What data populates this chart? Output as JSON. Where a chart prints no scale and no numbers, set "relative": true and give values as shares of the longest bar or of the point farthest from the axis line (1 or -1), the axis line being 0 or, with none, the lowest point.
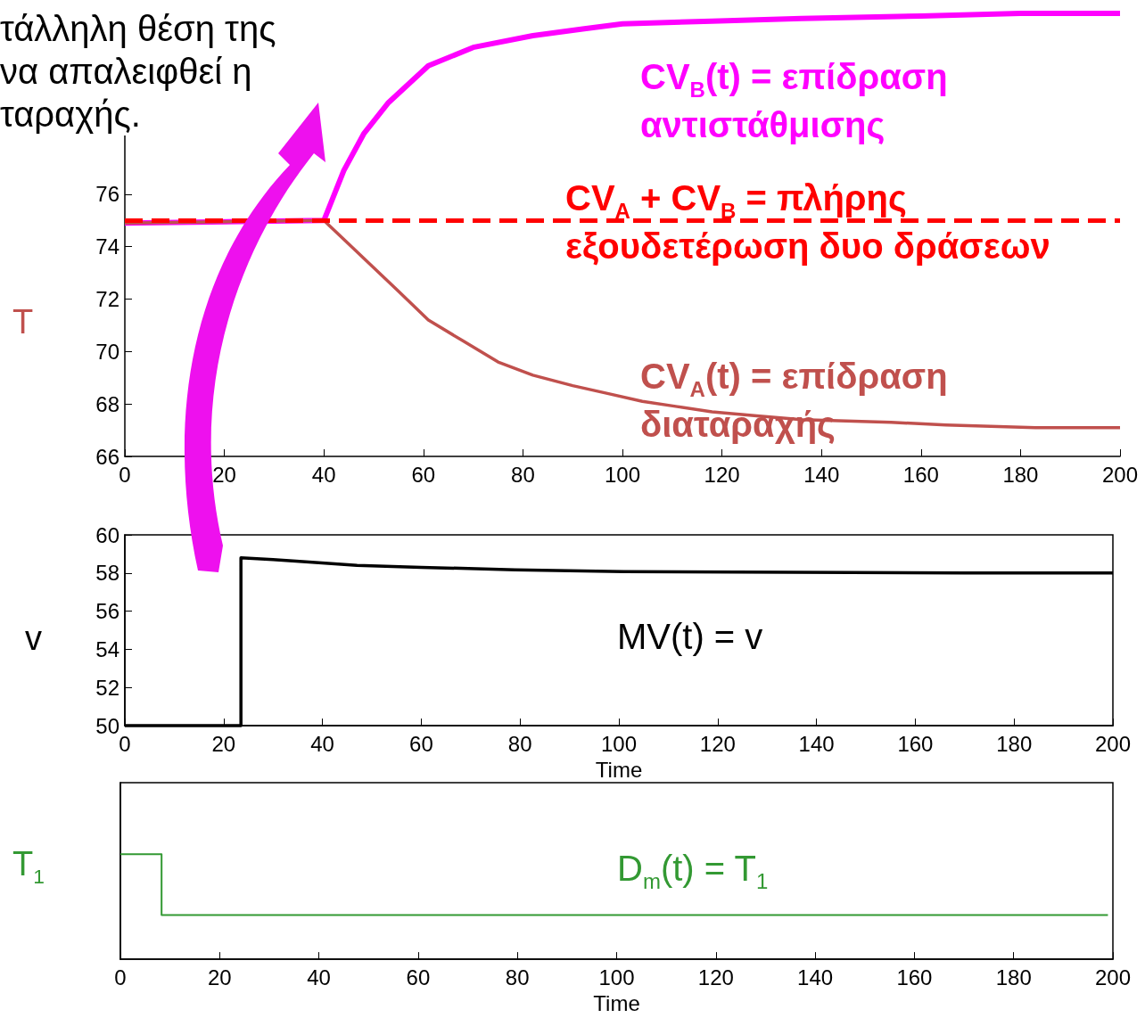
{
  "chart_data": [
    {
      "type": "line",
      "ylabel": "T",
      "xlim": [
        0,
        200
      ],
      "xticks": [
        0,
        20,
        40,
        60,
        80,
        100,
        120,
        140,
        160,
        180,
        200
      ],
      "ylim": [
        66,
        83
      ],
      "yticks": [
        66,
        68,
        70,
        72,
        74,
        76
      ],
      "grid": false,
      "series": [
        {
          "color": "#ff00ff",
          "x": [
            0,
            40,
            44,
            48,
            53,
            61,
            70,
            82,
            92,
            100,
            118,
            136,
            160,
            180,
            200
          ],
          "values": [
            74.9,
            75,
            76.9,
            78.3,
            79.5,
            80.9,
            81.6,
            82.05,
            82.3,
            82.5,
            82.6,
            82.7,
            82.8,
            82.9,
            82.9
          ]
        },
        {
          "color": "#c0504d",
          "x": [
            0,
            40,
            45,
            50,
            55,
            61,
            68,
            75,
            82,
            90,
            97,
            104,
            111,
            118,
            127,
            136,
            145,
            154,
            165,
            183,
            200
          ],
          "values": [
            74.9,
            75,
            74.1,
            73.2,
            72.3,
            71.2,
            70.4,
            69.6,
            69.1,
            68.7,
            68.4,
            68.1,
            67.9,
            67.7,
            67.55,
            67.4,
            67.35,
            67.3,
            67.2,
            67.1,
            67.1
          ]
        }
      ],
      "ref_lines": [
        {
          "axis": "y",
          "value": 75,
          "color": "#ff0000",
          "line_style": "dashed"
        }
      ],
      "annotations": [
        "τάλληλη θέση της να απαλειφθεί η ταραχής.",
        "CV$_{B}$(t) = επίδραση αντιστάθμισης",
        "CV$_{A}$ + CV$_{B}$ = πλήρης εξουδετέρωση δυο δράσεων",
        "CV$_{A}$(t) = επίδραση διαταραχής"
      ]
    },
    {
      "type": "line",
      "ylabel": "v",
      "xlabel": "Time",
      "xlim": [
        0,
        200
      ],
      "xticks": [
        0,
        20,
        40,
        60,
        80,
        100,
        120,
        140,
        160,
        180,
        200
      ],
      "ylim": [
        50,
        60
      ],
      "yticks": [
        50,
        52,
        54,
        56,
        58,
        60
      ],
      "grid": false,
      "series": [
        {
          "color": "#000000",
          "x": [
            0,
            23.5,
            23.5,
            30,
            36,
            47,
            60,
            79,
            101,
            170,
            200
          ],
          "values": [
            50,
            50,
            58.8,
            58.7,
            58.6,
            58.4,
            58.3,
            58.17,
            58.07,
            58,
            58
          ]
        }
      ],
      "annotations": [
        "MV(t) = v"
      ]
    },
    {
      "type": "line",
      "relative": true,
      "ylabel": "T$_{1}$",
      "xlabel": "Time",
      "xlim": [
        0,
        200
      ],
      "xticks": [
        0,
        20,
        40,
        60,
        80,
        100,
        120,
        140,
        160,
        180,
        200
      ],
      "tick_labels": "x",
      "grid": false,
      "series": [
        {
          "color": "#339933",
          "x": [
            0,
            8.3,
            8.3,
            199
          ],
          "values": [
            1,
            1,
            0.42,
            0.42
          ]
        }
      ],
      "annotations": [
        "D$_{m}$(t) = T$_{1}$"
      ]
    }
  ]
}
